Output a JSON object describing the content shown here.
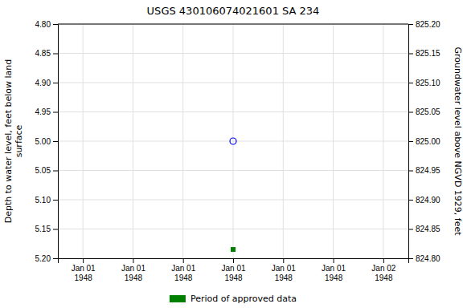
{
  "chart_data": {
    "type": "scatter",
    "title": "USGS 430106074021601 SA 234",
    "ylabel": "Depth to water level, feet below land\nsurface",
    "y2label": "Groundwater level above NGVD 1929, feet",
    "categories": [
      "Jan 01\n1948",
      "Jan 01\n1948",
      "Jan 01\n1948",
      "Jan 01\n1948",
      "Jan 01\n1948",
      "Jan 01\n1948",
      "Jan 02\n1948"
    ],
    "series": [
      {
        "color": "blue",
        "marker": "circle",
        "values": [
          null,
          null,
          null,
          5.0,
          null,
          null,
          null
        ]
      },
      {
        "name": "Period of approved data",
        "color": "#008000",
        "marker": "square",
        "values": [
          null,
          null,
          null,
          5.185,
          null,
          null,
          null
        ]
      }
    ],
    "ylim": [
      5.2,
      4.8
    ],
    "yticks": [
      {
        "value": 4.8,
        "label": "4.80"
      },
      {
        "value": 4.85,
        "label": "4.85"
      },
      {
        "value": 4.9,
        "label": "4.90"
      },
      {
        "value": 4.95,
        "label": "4.95"
      },
      {
        "value": 5.0,
        "label": "5.00"
      },
      {
        "value": 5.05,
        "label": "5.05"
      },
      {
        "value": 5.1,
        "label": "5.10"
      },
      {
        "value": 5.15,
        "label": "5.15"
      },
      {
        "value": 5.2,
        "label": "5.20"
      }
    ],
    "y2lim": [
      824.8,
      825.2
    ],
    "y2ticks": [
      {
        "value": 824.8,
        "label": "824.80"
      },
      {
        "value": 824.85,
        "label": "824.85"
      },
      {
        "value": 824.9,
        "label": "824.90"
      },
      {
        "value": 824.95,
        "label": "824.95"
      },
      {
        "value": 825.0,
        "label": "825.00"
      },
      {
        "value": 825.05,
        "label": "825.05"
      },
      {
        "value": 825.1,
        "label": "825.10"
      },
      {
        "value": 825.15,
        "label": "825.15"
      },
      {
        "value": 825.2,
        "label": "825.20"
      }
    ],
    "grid": true,
    "legend": "bottom"
  }
}
